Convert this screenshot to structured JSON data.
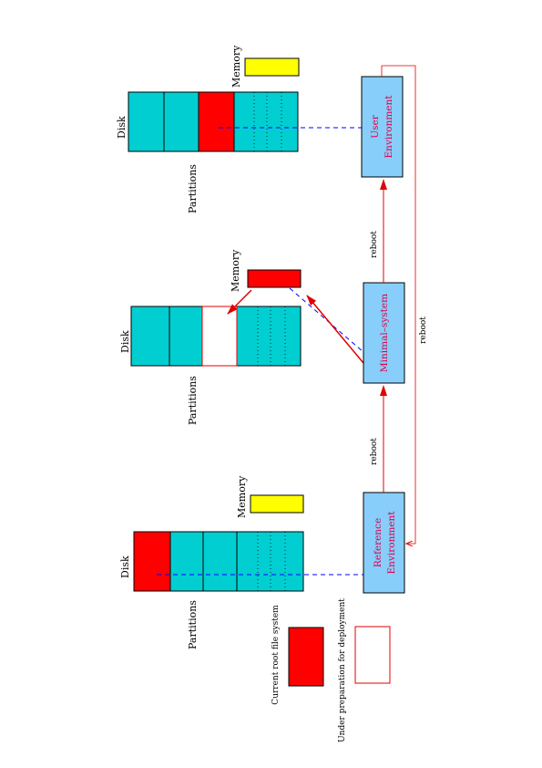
{
  "colors": {
    "teal": "#00CED1",
    "red": "#FF0000",
    "yellow": "#FFFF00",
    "env_box": "#87CEFA",
    "env_text": "#E0004A",
    "arrow": "#E00000",
    "dashed": "#0000FF"
  },
  "stages": [
    {
      "disk_label": "Disk",
      "partitions_label": "Partitions",
      "memory_label": "Memory",
      "memory_state": "idle",
      "environment": {
        "line1": "Reference",
        "line2": "Environment"
      }
    },
    {
      "disk_label": "Disk",
      "partitions_label": "Partitions",
      "memory_label": "Memory",
      "memory_state": "active",
      "environment": {
        "line1": "Minimal–system",
        "line2": ""
      }
    },
    {
      "disk_label": "Disk",
      "partitions_label": "Partitions",
      "memory_label": "Memory",
      "memory_state": "idle",
      "environment": {
        "line1": "User",
        "line2": "Environment"
      }
    }
  ],
  "arrows": {
    "reboot_1": "reboot",
    "reboot_2": "reboot",
    "reboot_loop": "reboot"
  },
  "legend": {
    "current_root": "Current root file system",
    "under_preparation": "Under preparation for deployment"
  }
}
